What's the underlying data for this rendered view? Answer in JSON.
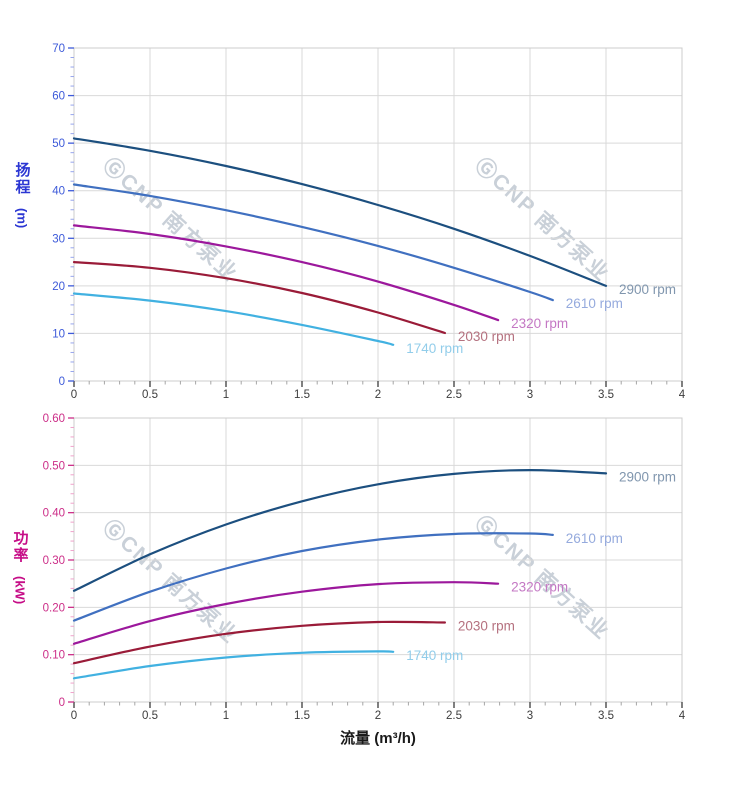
{
  "watermark": {
    "text": "ⒼCNP 南方泵业",
    "color": "#c9d0d8"
  },
  "chart_data": [
    {
      "type": "line",
      "title": "",
      "xlabel": "流量 (m³/h)",
      "ylabel": "扬程 (m)",
      "ylabel_main": "扬程",
      "ylabel_unit": "(m)",
      "xlim": [
        0,
        4
      ],
      "ylim": [
        0,
        70
      ],
      "grid": true,
      "legend_position": "curve-end-labels",
      "xticks": [
        0,
        0.5,
        1,
        1.5,
        2,
        2.5,
        3,
        3.5,
        4
      ],
      "xtick_labels": [
        "0",
        "0.5",
        "1",
        "1.5",
        "2",
        "2.5",
        "3",
        "3.5",
        "4"
      ],
      "yticks": [
        0,
        10,
        20,
        30,
        40,
        50,
        60,
        70
      ],
      "ytick_labels": [
        "0",
        "10",
        "20",
        "30",
        "40",
        "50",
        "60",
        "70"
      ],
      "minor_per_major": 5,
      "colors": {
        "grid": "#d9d9d9",
        "border": "#cccccc",
        "y_text": "#3d5ad9",
        "y_tick": "#3d5ad9",
        "y_tick_minor": "#97a5ec",
        "x_text": "#3c3c3c",
        "x_tick": "#3c3c3c",
        "x_tick_minor": "#a6a6a6",
        "title": "#2b36d3"
      },
      "series": [
        {
          "name": "2900 rpm",
          "color": "#1c4f7f",
          "label_color": "#8096ae",
          "x": [
            0,
            0.5,
            1,
            1.5,
            2,
            2.5,
            3,
            3.5
          ],
          "y": [
            51,
            48.4,
            45.2,
            41.4,
            37,
            32,
            26.3,
            20
          ]
        },
        {
          "name": "2610 rpm",
          "color": "#4070c0",
          "label_color": "#95aadd",
          "x": [
            0,
            0.5,
            1,
            1.5,
            2,
            2.5,
            3,
            3.15
          ],
          "y": [
            41.3,
            38.9,
            35.9,
            32.4,
            28.4,
            23.8,
            18.7,
            17
          ]
        },
        {
          "name": "2320 rpm",
          "color": "#9c189c",
          "label_color": "#c478c4",
          "x": [
            0,
            0.5,
            1,
            1.5,
            2,
            2.5,
            2.79
          ],
          "y": [
            32.7,
            30.9,
            28.3,
            25,
            20.9,
            16,
            12.8
          ]
        },
        {
          "name": "2030 rpm",
          "color": "#9a1b38",
          "label_color": "#b5717f",
          "x": [
            0,
            0.5,
            1,
            1.5,
            2,
            2.44
          ],
          "y": [
            25,
            23.8,
            21.6,
            18.5,
            14.4,
            10.1
          ]
        },
        {
          "name": "1740 rpm",
          "color": "#41b1e1",
          "label_color": "#92cdea",
          "x": [
            0,
            0.5,
            1,
            1.5,
            2,
            2.1
          ],
          "y": [
            18.4,
            16.9,
            14.7,
            11.8,
            8.4,
            7.6
          ]
        }
      ]
    },
    {
      "type": "line",
      "title": "",
      "xlabel": "流量 (m³/h)",
      "ylabel": "功率 (kW)",
      "ylabel_main": "功率",
      "ylabel_unit": "(kW)",
      "xlim": [
        0,
        4
      ],
      "ylim": [
        0,
        0.6
      ],
      "grid": true,
      "legend_position": "curve-end-labels",
      "xticks": [
        0,
        0.5,
        1,
        1.5,
        2,
        2.5,
        3,
        3.5,
        4
      ],
      "xtick_labels": [
        "0",
        "0.5",
        "1",
        "1.5",
        "2",
        "2.5",
        "3",
        "3.5",
        "4"
      ],
      "yticks": [
        0,
        0.1,
        0.2,
        0.3,
        0.4,
        0.5,
        0.6
      ],
      "ytick_labels": [
        "0",
        "0.10",
        "0.20",
        "0.30",
        "0.40",
        "0.50",
        "0.60"
      ],
      "minor_per_major": 5,
      "colors": {
        "grid": "#d9d9d9",
        "border": "#cccccc",
        "y_text": "#cc2e88",
        "y_tick": "#cc2e88",
        "y_tick_minor": "#efa3cb",
        "x_text": "#3c3c3c",
        "x_tick": "#3c3c3c",
        "x_tick_minor": "#a6a6a6",
        "title": "#c60d87"
      },
      "series": [
        {
          "name": "2900 rpm",
          "color": "#1c4f7f",
          "label_color": "#8096ae",
          "x": [
            0,
            0.5,
            1,
            1.5,
            2,
            2.5,
            3,
            3.5
          ],
          "y": [
            0.235,
            0.312,
            0.375,
            0.424,
            0.46,
            0.482,
            0.49,
            0.483
          ]
        },
        {
          "name": "2610 rpm",
          "color": "#4070c0",
          "label_color": "#95aadd",
          "x": [
            0,
            0.5,
            1,
            1.5,
            2,
            2.5,
            3,
            3.15
          ],
          "y": [
            0.172,
            0.233,
            0.282,
            0.319,
            0.343,
            0.355,
            0.356,
            0.353
          ]
        },
        {
          "name": "2320 rpm",
          "color": "#9c189c",
          "label_color": "#c478c4",
          "x": [
            0,
            0.5,
            1,
            1.5,
            2,
            2.5,
            2.79
          ],
          "y": [
            0.123,
            0.171,
            0.207,
            0.233,
            0.249,
            0.253,
            0.25
          ]
        },
        {
          "name": "2030 rpm",
          "color": "#9a1b38",
          "label_color": "#b5717f",
          "x": [
            0,
            0.5,
            1,
            1.5,
            2,
            2.44
          ],
          "y": [
            0.082,
            0.117,
            0.144,
            0.161,
            0.169,
            0.168
          ]
        },
        {
          "name": "1740 rpm",
          "color": "#41b1e1",
          "label_color": "#92cdea",
          "x": [
            0,
            0.5,
            1,
            1.5,
            2,
            2.1
          ],
          "y": [
            0.05,
            0.076,
            0.094,
            0.104,
            0.107,
            0.106
          ]
        }
      ]
    }
  ]
}
